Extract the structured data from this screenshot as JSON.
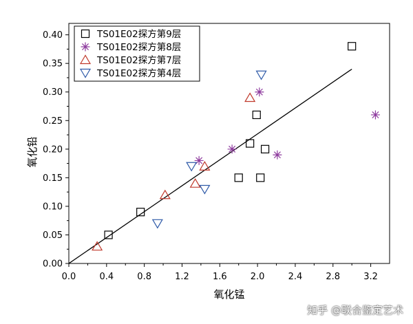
{
  "chart_data": {
    "type": "scatter",
    "title": "",
    "xlabel": "氧化锰",
    "ylabel": "氧化铅",
    "xlim": [
      0.0,
      3.4
    ],
    "ylim": [
      0.0,
      0.42
    ],
    "xticks": [
      "0.0",
      "0.4",
      "0.8",
      "1.2",
      "1.6",
      "2.0",
      "2.4",
      "2.8",
      "3.2"
    ],
    "yticks": [
      "0.00",
      "0.05",
      "0.10",
      "0.15",
      "0.20",
      "0.25",
      "0.30",
      "0.35",
      "0.40"
    ],
    "legend_position": "top-left",
    "series": [
      {
        "name": "TS01E02探方第9层",
        "marker": "square",
        "color": "#000000",
        "points": [
          [
            0.42,
            0.05
          ],
          [
            0.76,
            0.09
          ],
          [
            1.8,
            0.15
          ],
          [
            1.92,
            0.21
          ],
          [
            1.99,
            0.26
          ],
          [
            2.03,
            0.15
          ],
          [
            2.08,
            0.2
          ],
          [
            3.0,
            0.38
          ]
        ]
      },
      {
        "name": "TS01E02探方第8层",
        "marker": "asterisk",
        "color": "#8e3b9e",
        "points": [
          [
            1.38,
            0.18
          ],
          [
            1.73,
            0.2
          ],
          [
            2.02,
            0.3
          ],
          [
            2.21,
            0.19
          ],
          [
            3.25,
            0.26
          ]
        ]
      },
      {
        "name": "TS01E02探方第7层",
        "marker": "triangle-up",
        "color": "#c0392b",
        "points": [
          [
            0.3,
            0.03
          ],
          [
            1.02,
            0.12
          ],
          [
            1.34,
            0.14
          ],
          [
            1.44,
            0.17
          ],
          [
            1.92,
            0.29
          ]
        ]
      },
      {
        "name": "TS01E02探方第4层",
        "marker": "triangle-down",
        "color": "#2e5aa8",
        "points": [
          [
            0.94,
            0.07
          ],
          [
            1.3,
            0.17
          ],
          [
            1.44,
            0.13
          ],
          [
            2.04,
            0.33
          ]
        ]
      }
    ],
    "fit_line": {
      "x": [
        0.0,
        3.0
      ],
      "y": [
        0.0,
        0.34
      ]
    }
  },
  "watermark": "知乎 @联合鉴定艺术"
}
